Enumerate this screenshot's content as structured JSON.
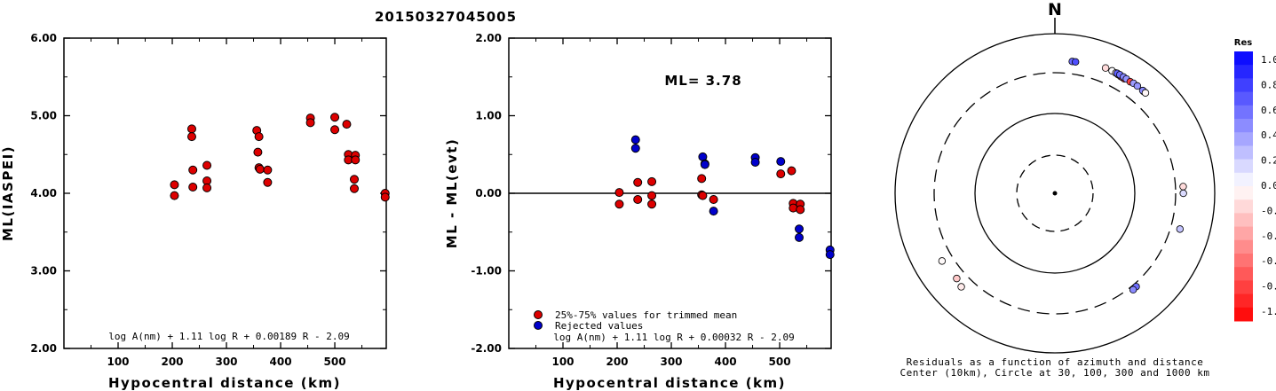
{
  "figure_title": "20150327045005",
  "chart_data": [
    {
      "type": "scatter",
      "xlabel": "Hypocentral distance (km)",
      "ylabel": "ML(IASPEI)",
      "xlim": [
        0,
        595
      ],
      "ylim": [
        2.0,
        6.0
      ],
      "xticks": [
        "100",
        "200",
        "300",
        "400",
        "500"
      ],
      "yticks": [
        "2.00",
        "3.00",
        "4.00",
        "5.00",
        "6.00"
      ],
      "formula": "log A(nm) + 1.11 log R + 0.00189 R - 2.09",
      "series": [
        {
          "color": "#dd0000",
          "points": [
            [
              204,
              4.11
            ],
            [
              204,
              3.97
            ],
            [
              236,
              4.83
            ],
            [
              236,
              4.73
            ],
            [
              238,
              4.3
            ],
            [
              238,
              4.08
            ],
            [
              264,
              4.36
            ],
            [
              264,
              4.16
            ],
            [
              264,
              4.07
            ],
            [
              356,
              4.81
            ],
            [
              358,
              4.53
            ],
            [
              360,
              4.73
            ],
            [
              360,
              4.33
            ],
            [
              362,
              4.31
            ],
            [
              376,
              4.3
            ],
            [
              376,
              4.14
            ],
            [
              455,
              4.97
            ],
            [
              455,
              4.91
            ],
            [
              500,
              4.98
            ],
            [
              500,
              4.82
            ],
            [
              522,
              4.89
            ],
            [
              525,
              4.5
            ],
            [
              525,
              4.43
            ],
            [
              538,
              4.49
            ],
            [
              538,
              4.43
            ],
            [
              536,
              4.18
            ],
            [
              536,
              4.06
            ],
            [
              593,
              4.0
            ],
            [
              593,
              3.95
            ]
          ]
        }
      ]
    },
    {
      "type": "scatter",
      "xlabel": "Hypocentral distance (km)",
      "ylabel": "ML - ML(evt)",
      "xlim": [
        0,
        595
      ],
      "ylim": [
        -2.0,
        2.0
      ],
      "xticks": [
        "100",
        "200",
        "300",
        "400",
        "500"
      ],
      "yticks": [
        "-2.00",
        "-1.00",
        "0.00",
        "1.00",
        "2.00"
      ],
      "ml_text": "ML= 3.78",
      "formula": "log A(nm) + 1.11 log R + 0.00032 R - 2.09",
      "legend": [
        {
          "label": "25%-75% values for trimmed mean",
          "color": "#dd0000"
        },
        {
          "label": "Rejected values",
          "color": "#0000cc"
        }
      ],
      "series": [
        {
          "color": "#dd0000",
          "points": [
            [
              204,
              0.01
            ],
            [
              204,
              -0.14
            ],
            [
              238,
              0.14
            ],
            [
              238,
              -0.08
            ],
            [
              264,
              0.15
            ],
            [
              264,
              -0.03
            ],
            [
              264,
              -0.14
            ],
            [
              356,
              0.19
            ],
            [
              356,
              -0.02
            ],
            [
              358,
              -0.03
            ],
            [
              378,
              -0.08
            ],
            [
              502,
              0.25
            ],
            [
              522,
              0.29
            ],
            [
              525,
              -0.13
            ],
            [
              525,
              -0.19
            ],
            [
              538,
              -0.14
            ],
            [
              538,
              -0.21
            ]
          ]
        },
        {
          "color": "#0000cc",
          "points": [
            [
              234,
              0.69
            ],
            [
              234,
              0.58
            ],
            [
              358,
              0.47
            ],
            [
              362,
              0.38
            ],
            [
              362,
              0.37
            ],
            [
              378,
              -0.23
            ],
            [
              455,
              0.46
            ],
            [
              455,
              0.4
            ],
            [
              502,
              0.41
            ],
            [
              536,
              -0.46
            ],
            [
              536,
              -0.57
            ],
            [
              593,
              -0.73
            ],
            [
              593,
              -0.79
            ]
          ]
        }
      ]
    },
    {
      "type": "scatter",
      "subtype": "polar",
      "north_label": "N",
      "caption_line1": "Residuals as a function of azimuth and distance",
      "caption_line2": "Center (10km), Circle at 30, 100, 300 and 1000 km",
      "colorbar_title": "Res",
      "colorbar_ticks": [
        "1.0",
        "0.8",
        "0.6",
        "0.4",
        "0.2",
        "0.0",
        "-0.2",
        "-0.4",
        "-0.6",
        "-0.8",
        "-1.0"
      ],
      "rings_km": [
        30,
        100,
        300,
        1000
      ],
      "points": [
        {
          "azimuth_deg": 7.5,
          "residual": 0.58
        },
        {
          "azimuth_deg": 8.9,
          "residual": 0.69
        },
        {
          "azimuth_deg": 22.0,
          "residual": -0.14
        },
        {
          "azimuth_deg": 25.0,
          "residual": 0.01
        },
        {
          "azimuth_deg": 26.8,
          "residual": -0.08
        },
        {
          "azimuth_deg": 28.0,
          "residual": -0.2
        },
        {
          "azimuth_deg": 29.3,
          "residual": -0.5
        },
        {
          "azimuth_deg": 30.0,
          "residual": -0.65
        },
        {
          "azimuth_deg": 31.2,
          "residual": -0.79
        },
        {
          "azimuth_deg": 27.4,
          "residual": 0.62
        },
        {
          "azimuth_deg": 28.7,
          "residual": 0.55
        },
        {
          "azimuth_deg": 30.5,
          "residual": 0.47
        },
        {
          "azimuth_deg": 32.0,
          "residual": 0.42
        },
        {
          "azimuth_deg": 34.0,
          "residual": -0.73
        },
        {
          "azimuth_deg": 35.5,
          "residual": 0.38
        },
        {
          "azimuth_deg": 37.5,
          "residual": 0.41
        },
        {
          "azimuth_deg": 41.0,
          "residual": 0.37
        },
        {
          "azimuth_deg": 40.5,
          "residual": 0.46
        },
        {
          "azimuth_deg": 42.0,
          "residual": -0.03
        },
        {
          "azimuth_deg": 87.0,
          "residual": -0.14
        },
        {
          "azimuth_deg": 90.0,
          "residual": 0.14
        },
        {
          "azimuth_deg": 106.0,
          "residual": 0.23
        },
        {
          "azimuth_deg": 139.0,
          "residual": 0.57
        },
        {
          "azimuth_deg": 141.0,
          "residual": 0.46
        },
        {
          "azimuth_deg": 225.0,
          "residual": -0.08
        },
        {
          "azimuth_deg": 229.0,
          "residual": -0.21
        },
        {
          "azimuth_deg": 239.0,
          "residual": -0.02
        }
      ]
    }
  ]
}
